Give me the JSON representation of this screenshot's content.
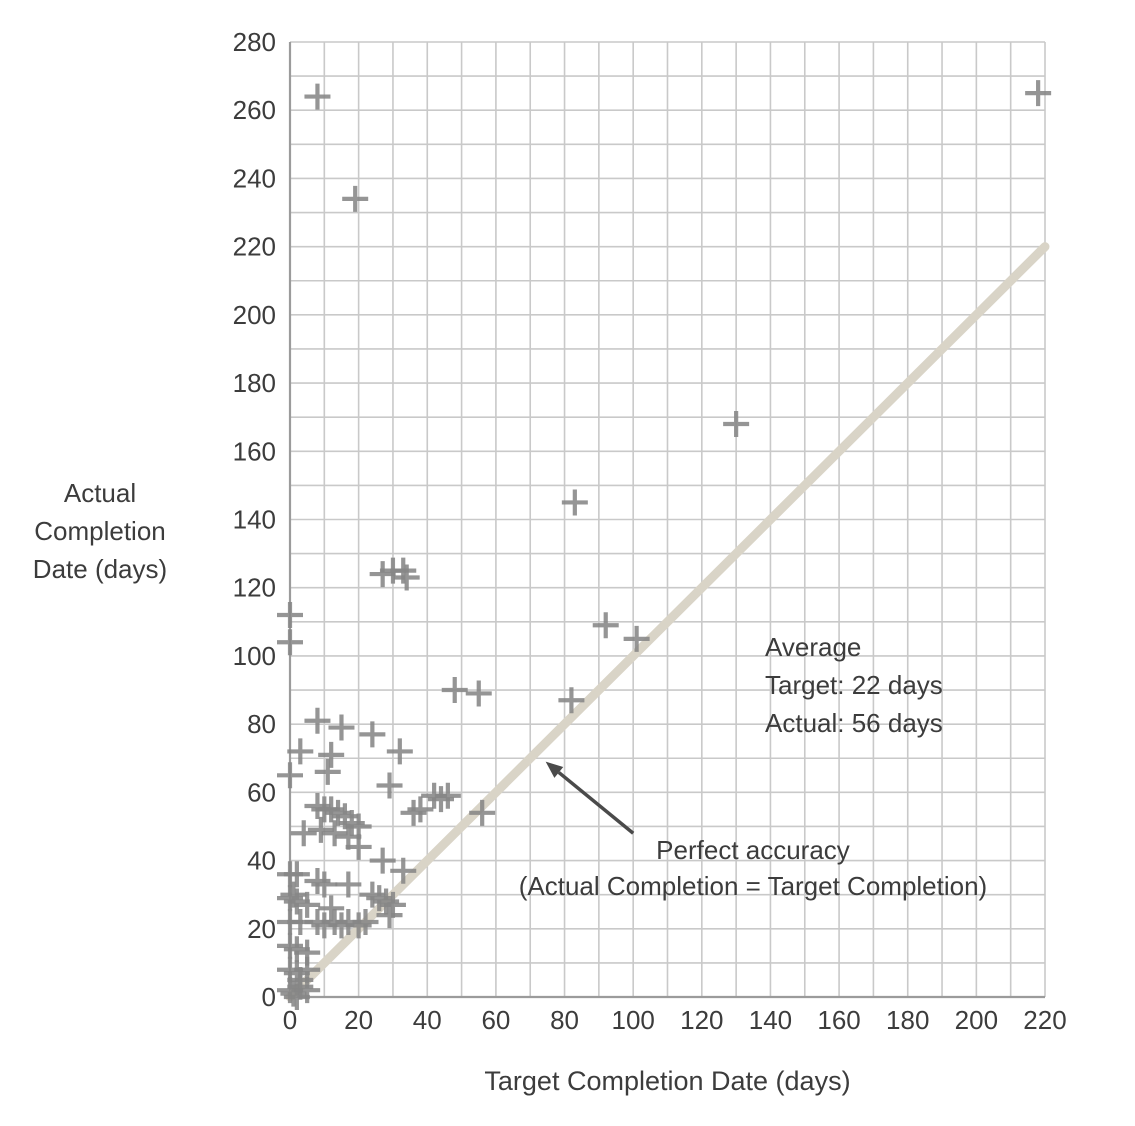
{
  "figure": {
    "background": "#ffffff"
  },
  "chart_data": {
    "type": "scatter",
    "title": "",
    "xlabel": "Target Completion Date (days)",
    "ylabel_lines": [
      "Actual",
      "Completion",
      "Date (days)"
    ],
    "xlim": [
      0,
      220
    ],
    "ylim": [
      0,
      280
    ],
    "x_ticks": [
      0,
      20,
      40,
      60,
      80,
      100,
      120,
      140,
      160,
      180,
      200,
      220
    ],
    "y_ticks": [
      0,
      20,
      40,
      60,
      80,
      100,
      120,
      140,
      160,
      180,
      200,
      220,
      240,
      260,
      280
    ],
    "grid_step": 10,
    "grid": true,
    "legend_position": "none",
    "reference_line": {
      "name": "perfect-accuracy",
      "from": [
        0,
        0
      ],
      "to": [
        220,
        220
      ]
    },
    "points": [
      [
        8,
        264
      ],
      [
        19,
        234
      ],
      [
        218,
        265
      ],
      [
        130,
        168
      ],
      [
        83,
        145
      ],
      [
        27,
        124
      ],
      [
        30,
        125
      ],
      [
        33,
        125
      ],
      [
        34,
        123
      ],
      [
        92,
        109
      ],
      [
        101,
        105
      ],
      [
        0,
        112
      ],
      [
        0,
        104
      ],
      [
        48,
        90
      ],
      [
        55,
        89
      ],
      [
        82,
        87
      ],
      [
        8,
        81
      ],
      [
        15,
        79
      ],
      [
        24,
        77
      ],
      [
        3,
        72
      ],
      [
        12,
        71
      ],
      [
        32,
        72
      ],
      [
        11,
        66
      ],
      [
        0,
        65
      ],
      [
        29,
        62
      ],
      [
        42,
        59
      ],
      [
        44,
        58
      ],
      [
        46,
        59
      ],
      [
        36,
        54
      ],
      [
        38,
        55
      ],
      [
        56,
        54
      ],
      [
        8,
        56
      ],
      [
        10,
        55
      ],
      [
        12,
        55
      ],
      [
        14,
        54
      ],
      [
        16,
        53
      ],
      [
        18,
        51
      ],
      [
        20,
        50
      ],
      [
        9,
        49
      ],
      [
        13,
        48
      ],
      [
        4,
        48
      ],
      [
        17,
        47
      ],
      [
        20,
        44
      ],
      [
        27,
        40
      ],
      [
        33,
        37
      ],
      [
        0,
        36
      ],
      [
        2,
        36
      ],
      [
        8,
        34
      ],
      [
        10,
        33
      ],
      [
        17,
        33
      ],
      [
        1,
        30
      ],
      [
        24,
        30
      ],
      [
        26,
        29
      ],
      [
        28,
        28
      ],
      [
        30,
        27
      ],
      [
        29,
        24
      ],
      [
        0,
        29
      ],
      [
        2,
        28
      ],
      [
        5,
        27
      ],
      [
        12,
        26
      ],
      [
        0,
        22
      ],
      [
        3,
        22
      ],
      [
        8,
        22
      ],
      [
        10,
        21
      ],
      [
        13,
        22
      ],
      [
        15,
        21
      ],
      [
        17,
        22
      ],
      [
        20,
        21
      ],
      [
        22,
        22
      ],
      [
        0,
        15
      ],
      [
        2,
        14
      ],
      [
        5,
        13
      ],
      [
        0,
        8
      ],
      [
        2,
        7
      ],
      [
        5,
        8
      ],
      [
        3,
        5
      ],
      [
        0,
        2
      ],
      [
        1,
        1
      ],
      [
        3,
        3
      ],
      [
        5,
        2
      ],
      [
        2,
        0
      ]
    ],
    "annotation": {
      "line1": "Perfect accuracy",
      "line2": "(Actual Completion = Target Completion)",
      "arrow": {
        "from": [
          100,
          48
        ],
        "to": [
          74.5,
          69
        ]
      }
    },
    "stats": {
      "line1": "Average",
      "line2": "Target: 22 days",
      "line3": "Actual: 56 days"
    },
    "colors": {
      "marker": "#868686",
      "grid": "#c9c9c9",
      "axis": "#9b9b9b",
      "reference": "#d9d4c7",
      "text": "#3c3c3c",
      "arrow": "#4a4a4a"
    }
  }
}
